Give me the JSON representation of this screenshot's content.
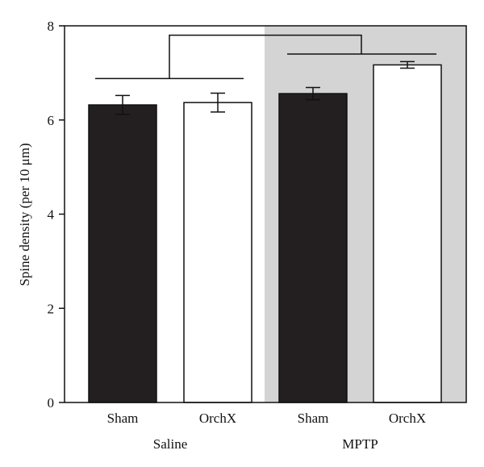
{
  "chart_data": {
    "type": "bar",
    "title": "",
    "ylabel": "Spine density (per 10 μm)",
    "xlabel": "",
    "ylim": [
      0,
      8
    ],
    "yticks": [
      0,
      2,
      4,
      6,
      8
    ],
    "groups": [
      {
        "label": "Saline",
        "categories": [
          "Sham",
          "OrchX"
        ]
      },
      {
        "label": "MPTP",
        "categories": [
          "Sham",
          "OrchX"
        ]
      }
    ],
    "bars": [
      {
        "group": "Saline",
        "category": "Sham",
        "value": 6.32,
        "error": 0.2,
        "fill": "#231f20"
      },
      {
        "group": "Saline",
        "category": "OrchX",
        "value": 6.37,
        "error": 0.2,
        "fill": "#ffffff"
      },
      {
        "group": "MPTP",
        "category": "Sham",
        "value": 6.56,
        "error": 0.13,
        "fill": "#231f20"
      },
      {
        "group": "MPTP",
        "category": "OrchX",
        "value": 7.17,
        "error": 0.07,
        "fill": "#ffffff"
      }
    ],
    "shaded_group": "MPTP",
    "shade_color": "#d4d4d4",
    "comparison_brackets": [
      {
        "between": [
          "Saline",
          "MPTP"
        ],
        "level": 7.8
      },
      {
        "group": "Saline",
        "level": 6.88
      },
      {
        "group": "MPTP",
        "level": 7.4
      }
    ],
    "grid": false
  }
}
